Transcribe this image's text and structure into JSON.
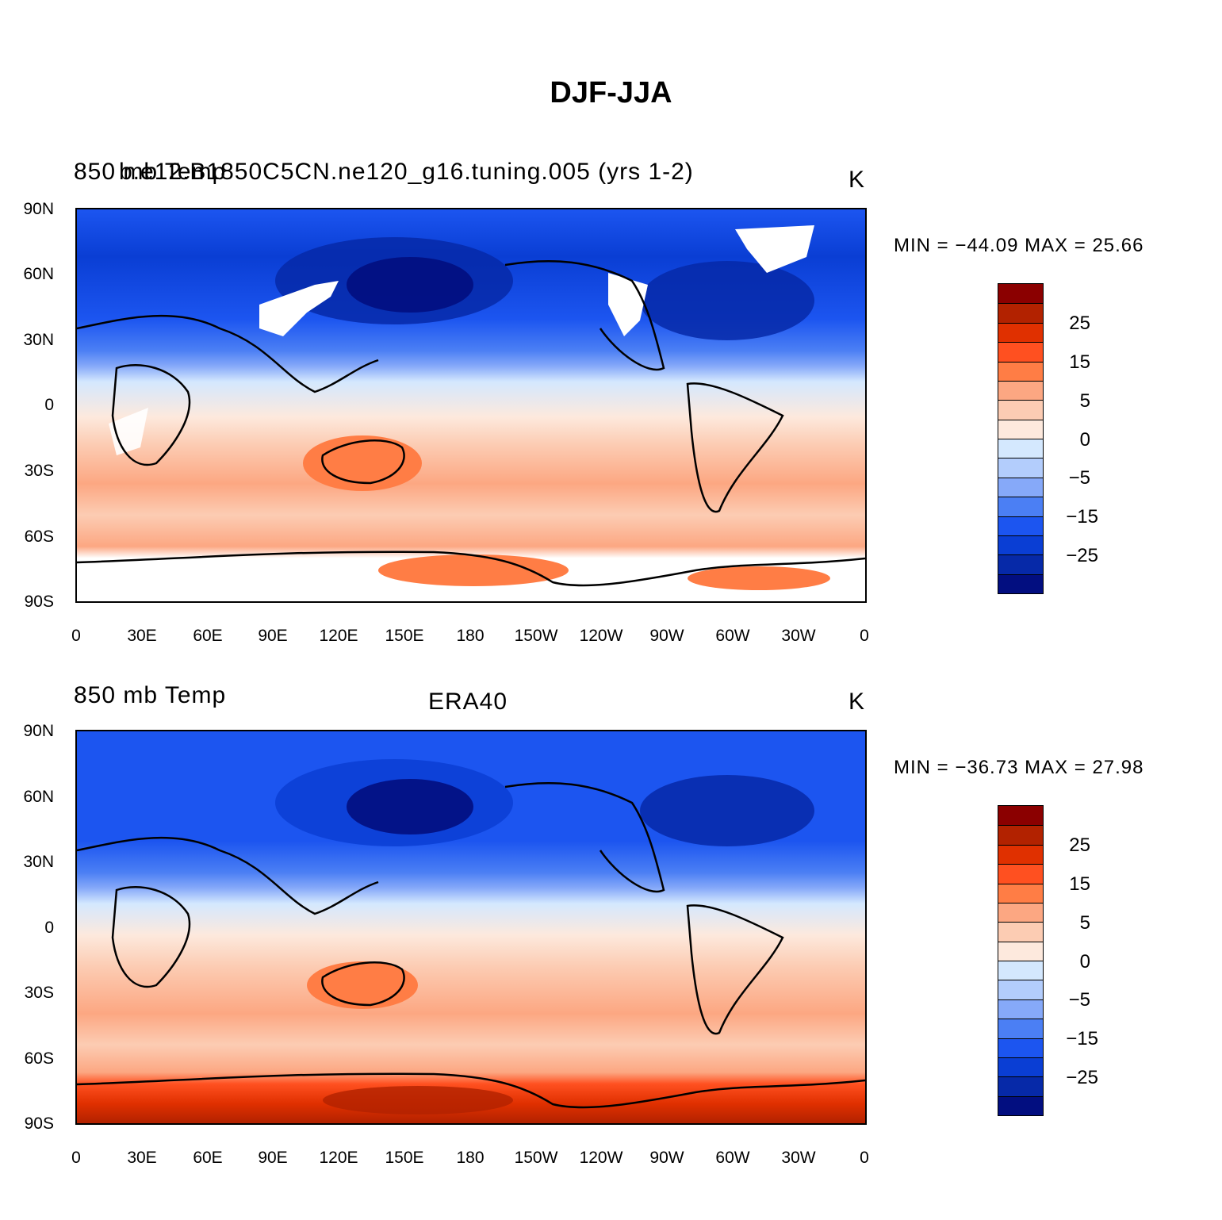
{
  "title": "DJF-JJA",
  "panels": [
    {
      "left_label": "850 mb Temp",
      "center_label": "b.e12.B1850C5CN.ne120_g16.tuning.005 (yrs 1-2)",
      "units": "K",
      "minmax": "MIN = −44.09  MAX =   25.66",
      "missing_data": true
    },
    {
      "left_label": "850 mb Temp",
      "center_label": "ERA40",
      "units": "K",
      "minmax": "MIN = −36.73  MAX =   27.98",
      "missing_data": false
    }
  ],
  "lat_ticks": [
    "90N",
    "60N",
    "30N",
    "0",
    "30S",
    "60S",
    "90S"
  ],
  "lon_ticks": [
    "0",
    "30E",
    "60E",
    "90E",
    "120E",
    "150E",
    "180",
    "150W",
    "120W",
    "90W",
    "60W",
    "30W",
    "0"
  ],
  "colorbar": {
    "labels": [
      "25",
      "15",
      "5",
      "0",
      "−5",
      "−15",
      "−25"
    ],
    "colors": [
      "#8b0000",
      "#b22200",
      "#e03000",
      "#ff5020",
      "#ff7d45",
      "#fca782",
      "#fcccb3",
      "#fde9dd",
      "#d4e8fe",
      "#b3cdfc",
      "#86a9f9",
      "#4b7ff4",
      "#1c55f0",
      "#0a3ed4",
      "#0629a8",
      "#020e80"
    ]
  }
}
